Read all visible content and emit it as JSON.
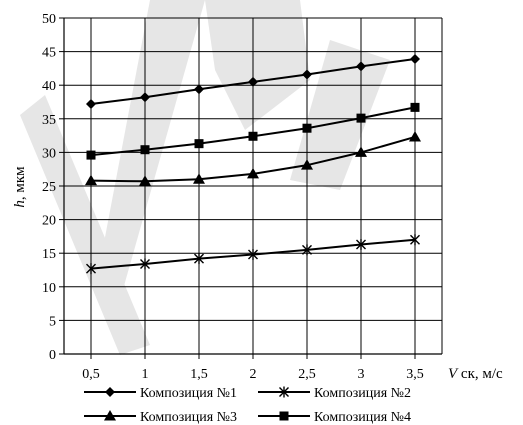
{
  "chart_data": {
    "type": "line",
    "x": [
      0.5,
      1,
      1.5,
      2,
      2.5,
      3,
      3.5
    ],
    "x_tick_labels": [
      "0,5",
      "1",
      "1,5",
      "2",
      "2,5",
      "3",
      "3,5"
    ],
    "y_ticks": [
      0,
      5,
      10,
      15,
      20,
      25,
      30,
      35,
      40,
      45,
      50
    ],
    "xlim": [
      0.25,
      3.75
    ],
    "ylim": [
      0,
      50
    ],
    "xlabel": "V ск, м/с",
    "xlabel_italic": "V",
    "xlabel_rest": " ск, м/с",
    "ylabel": "h, мкм",
    "ylabel_italic": "h",
    "ylabel_rest": ", мкм",
    "grid": true,
    "legend_position": "bottom",
    "series": [
      {
        "name": "Композиция №1",
        "marker": "diamond",
        "values": [
          37.2,
          38.2,
          39.4,
          40.5,
          41.6,
          42.8,
          43.9
        ]
      },
      {
        "name": "Композиция №2",
        "marker": "asterisk",
        "values": [
          12.7,
          13.4,
          14.2,
          14.8,
          15.5,
          16.3,
          17.0
        ]
      },
      {
        "name": "Композиция №3",
        "marker": "triangle",
        "values": [
          25.8,
          25.7,
          26.0,
          26.8,
          28.1,
          30.0,
          32.3
        ]
      },
      {
        "name": "Композиция №4",
        "marker": "square",
        "values": [
          29.6,
          30.4,
          31.3,
          32.4,
          33.6,
          35.1,
          36.7
        ]
      }
    ]
  }
}
